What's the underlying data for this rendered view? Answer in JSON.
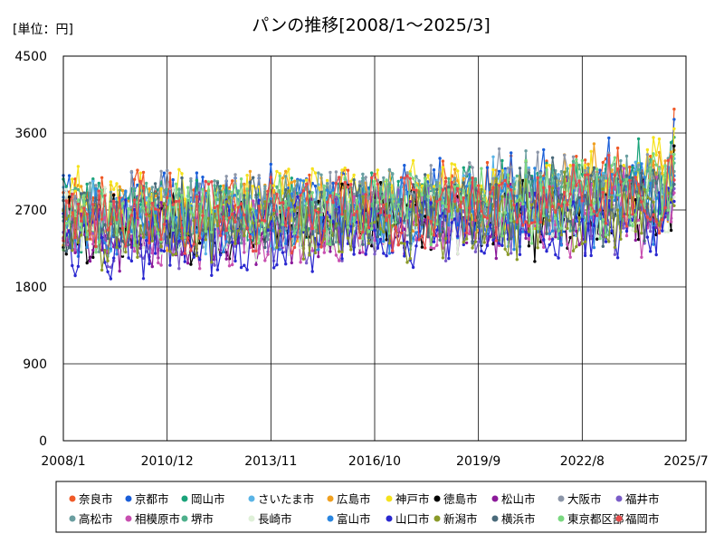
{
  "chart_data": {
    "type": "line",
    "title": "パンの推移[2008/1～2025/3]",
    "unit_label": "[単位：円]",
    "ylim": [
      0,
      4500
    ],
    "y_ticks": [
      "0",
      "900",
      "1800",
      "2700",
      "3600",
      "4500"
    ],
    "x_range": [
      "2008/1",
      "2025/7"
    ],
    "x_ticks": [
      "2008/1",
      "2010/12",
      "2013/11",
      "2016/10",
      "2019/9",
      "2022/8",
      "2025/7"
    ],
    "grid": "vertical-and-horizontal",
    "legend_position": "bottom",
    "series": [
      {
        "name": "奈良市",
        "color": "#f05a28",
        "base": 2700,
        "trend": 300,
        "last": 3880
      },
      {
        "name": "京都市",
        "color": "#1a5ed8",
        "base": 2750,
        "trend": 250,
        "last": 3760
      },
      {
        "name": "岡山市",
        "color": "#1aa37a",
        "base": 2650,
        "trend": 350,
        "last": 3550
      },
      {
        "name": "さいたま市",
        "color": "#5ab4e6",
        "base": 2600,
        "trend": 300,
        "last": 3300
      },
      {
        "name": "広島市",
        "color": "#f0a020",
        "base": 2680,
        "trend": 330,
        "last": 3400
      },
      {
        "name": "神戸市",
        "color": "#f5e21c",
        "base": 2750,
        "trend": 350,
        "last": 3650
      },
      {
        "name": "徳島市",
        "color": "#000000",
        "base": 2500,
        "trend": 250,
        "last": 3450
      },
      {
        "name": "松山市",
        "color": "#8c1a9a",
        "base": 2450,
        "trend": 300,
        "last": 3050
      },
      {
        "name": "大阪市",
        "color": "#8c96a8",
        "base": 2700,
        "trend": 300,
        "last": 3000
      },
      {
        "name": "福井市",
        "color": "#7a5cc8",
        "base": 2450,
        "trend": 300,
        "last": 2950
      },
      {
        "name": "高松市",
        "color": "#6a9ea0",
        "base": 2650,
        "trend": 300,
        "last": 3150
      },
      {
        "name": "相模原市",
        "color": "#c84fb0",
        "base": 2450,
        "trend": 300,
        "last": 2900
      },
      {
        "name": "堺市",
        "color": "#4fb08c",
        "base": 2600,
        "trend": 320,
        "last": 3250
      },
      {
        "name": "長崎市",
        "color": "#dff0d8",
        "base": 2500,
        "trend": 300,
        "last": 2850
      },
      {
        "name": "富山市",
        "color": "#2a86e0",
        "base": 2550,
        "trend": 300,
        "last": 3100
      },
      {
        "name": "山口市",
        "color": "#2a28d0",
        "base": 2350,
        "trend": 300,
        "last": 2800
      },
      {
        "name": "新潟市",
        "color": "#8a9a2a",
        "base": 2450,
        "trend": 300,
        "last": 2750
      },
      {
        "name": "横浜市",
        "color": "#4a6a7a",
        "base": 2600,
        "trend": 300,
        "last": 3000
      },
      {
        "name": "東京都区部",
        "color": "#7ad880",
        "base": 2650,
        "trend": 300,
        "last": 3350
      },
      {
        "name": "福岡市",
        "color": "#e84a4a",
        "base": 2600,
        "trend": 300,
        "last": 3050
      }
    ]
  }
}
